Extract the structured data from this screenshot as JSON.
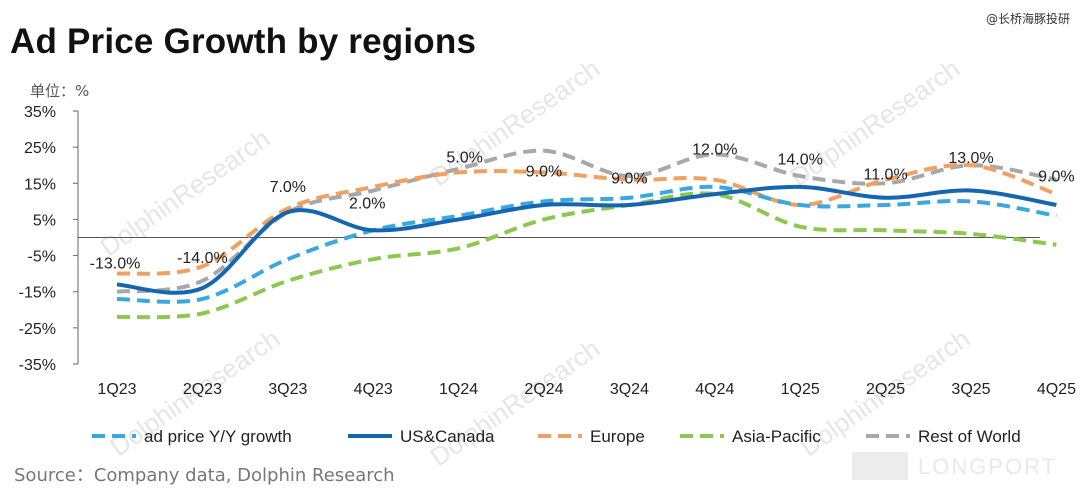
{
  "title": "Ad Price Growth by regions",
  "top_watermark": "@长桥海豚投研",
  "unit_label": "单位：%",
  "source": "Source：Company data, Dolphin Research",
  "watermark_text": "DolphinResearch",
  "brand_text": "LONGPORT",
  "chart_data": {
    "type": "line",
    "categories": [
      "1Q23",
      "2Q23",
      "3Q23",
      "4Q23",
      "1Q24",
      "2Q24",
      "3Q24",
      "4Q24",
      "1Q25",
      "2Q25",
      "3Q25",
      "4Q25"
    ],
    "ylim": [
      -35,
      35
    ],
    "yticks": [
      "35%",
      "25%",
      "15%",
      "5%",
      "-5%",
      "-15%",
      "-25%",
      "-35%"
    ],
    "ytick_values": [
      35,
      25,
      15,
      5,
      -5,
      -15,
      -25,
      -35
    ],
    "series": [
      {
        "name": "ad price Y/Y growth",
        "color": "#3aa8e0",
        "dashed": true,
        "values": [
          -17,
          -17,
          -6,
          2,
          6,
          10,
          11,
          14,
          9,
          9,
          10,
          6
        ]
      },
      {
        "name": "US&Canada",
        "color": "#1565b0",
        "dashed": false,
        "values": [
          -13,
          -14,
          7,
          2,
          5,
          9,
          9,
          12,
          14,
          11,
          13,
          9
        ]
      },
      {
        "name": "Europe",
        "color": "#f0a060",
        "dashed": true,
        "values": [
          -10,
          -8,
          8,
          14,
          18,
          18,
          16,
          16,
          9,
          16,
          20,
          12
        ]
      },
      {
        "name": "Asia-Pacific",
        "color": "#8cc850",
        "dashed": true,
        "values": [
          -22,
          -21,
          -12,
          -6,
          -3,
          5,
          9,
          12,
          3,
          2,
          1,
          -2
        ]
      },
      {
        "name": "Rest of World",
        "color": "#a8a8a8",
        "dashed": true,
        "values": [
          -15,
          -12,
          7,
          13,
          19,
          24,
          17,
          23,
          17,
          15,
          20,
          16
        ]
      }
    ],
    "data_labels": [
      "-13.0%",
      "-14.0%",
      "7.0%",
      "2.0%",
      "5.0%",
      "9.0%",
      "9.0%",
      "12.0%",
      "14.0%",
      "11.0%",
      "13.0%",
      "9.0%"
    ],
    "grid": false,
    "legend_position": "bottom"
  }
}
